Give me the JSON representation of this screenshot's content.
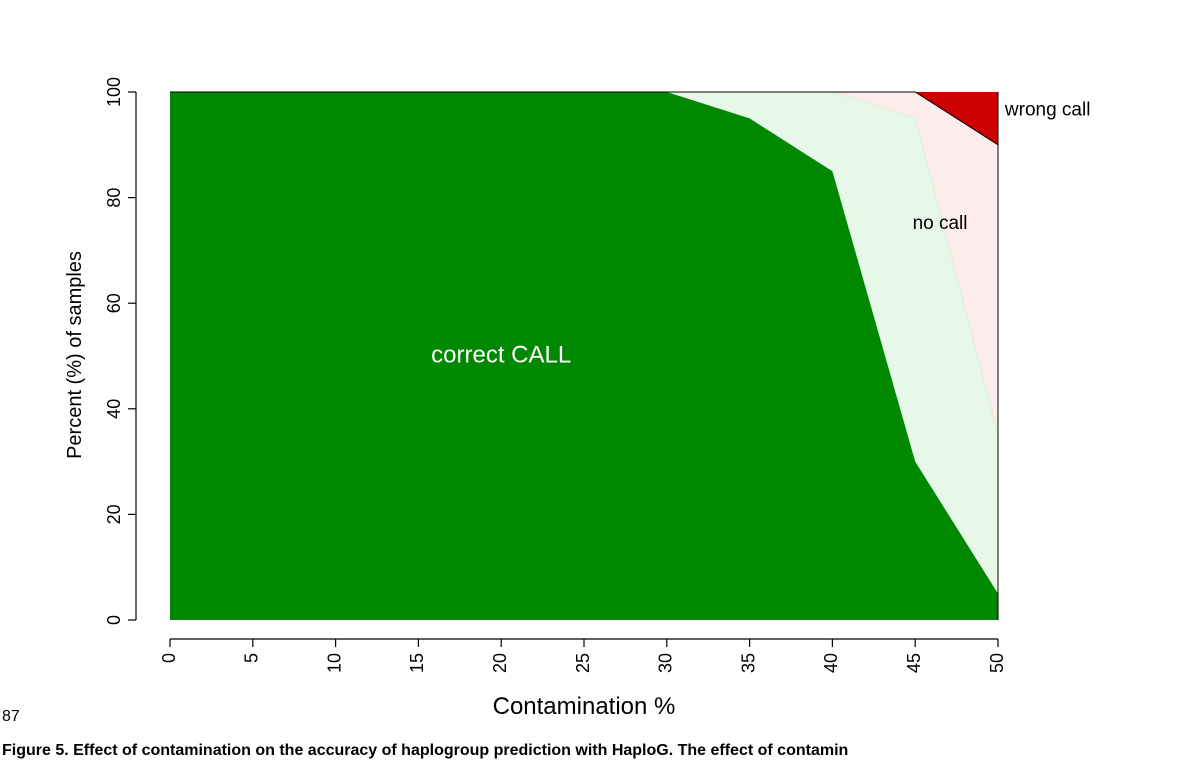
{
  "line_number": "87",
  "caption": "Figure 5. Effect of contamination on the accuracy of haplogroup prediction with HaploG. The effect of contamin",
  "colors": {
    "correct": "#008800",
    "nocall": "#e8f8e8",
    "wrong_bg": "#fdecec",
    "wrong": "#cc0000"
  },
  "chart_data": {
    "type": "area",
    "stacked": true,
    "xlabel": "Contamination %",
    "ylabel": "Percent (%) of samples",
    "xlim": [
      0,
      50
    ],
    "ylim": [
      0,
      100
    ],
    "x_ticks": [
      "0",
      "5",
      "10",
      "15",
      "20",
      "25",
      "30",
      "35",
      "40",
      "45",
      "50"
    ],
    "y_ticks": [
      "0",
      "20",
      "40",
      "60",
      "80",
      "100"
    ],
    "x": [
      0,
      5,
      10,
      15,
      20,
      25,
      30,
      35,
      40,
      45,
      50
    ],
    "series": [
      {
        "name": "correct CALL",
        "upper": [
          100,
          100,
          100,
          100,
          100,
          100,
          100,
          95,
          85,
          30,
          5
        ]
      },
      {
        "name": "no call",
        "upper": [
          100,
          100,
          100,
          100,
          100,
          100,
          100,
          100,
          100,
          95,
          35
        ]
      },
      {
        "name": "",
        "upper": [
          100,
          100,
          100,
          100,
          100,
          100,
          100,
          100,
          100,
          100,
          90
        ]
      },
      {
        "name": "wrong call",
        "upper": [
          100,
          100,
          100,
          100,
          100,
          100,
          100,
          100,
          100,
          100,
          100
        ]
      }
    ],
    "annotations": [
      {
        "text": "correct CALL",
        "x": 20,
        "y": 50
      },
      {
        "text": "no call",
        "x": 46.5,
        "y": 75
      },
      {
        "text": "wrong call",
        "x": 53,
        "y": 96.5
      }
    ]
  }
}
